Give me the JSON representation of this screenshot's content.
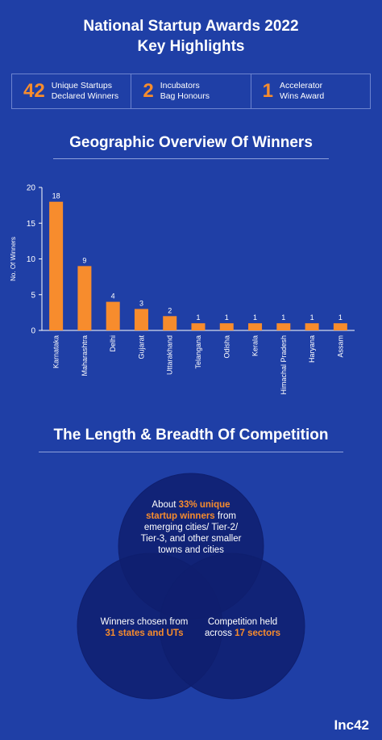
{
  "header": {
    "title_line1": "National Startup Awards 2022",
    "title_line2": "Key Highlights"
  },
  "stats": [
    {
      "number": "42",
      "line1": "Unique Startups",
      "line2": "Declared Winners"
    },
    {
      "number": "2",
      "line1": "Incubators",
      "line2": "Bag Honours"
    },
    {
      "number": "1",
      "line1": "Accelerator",
      "line2": "Wins Award"
    }
  ],
  "section1_title": "Geographic Overview Of Winners",
  "section2_title": "The Length & Breadth Of Competition",
  "colors": {
    "background": "#1f3fa6",
    "accent": "#f78c2d",
    "circle": "#0f1f6e"
  },
  "chart_data": {
    "type": "bar",
    "categories": [
      "Karnataka",
      "Maharashtra",
      "Delhi",
      "Gujarat",
      "Uttarakhand",
      "Telangana",
      "Odisha",
      "Kerala",
      "Himachal Pradesh",
      "Haryana",
      "Assam"
    ],
    "values": [
      18,
      9,
      4,
      3,
      2,
      1,
      1,
      1,
      1,
      1,
      1
    ],
    "ylabel": "No. Of Winners",
    "xlabel": "",
    "ylim": [
      0,
      20
    ],
    "yticks": [
      0,
      5,
      10,
      15,
      20
    ],
    "grid": false
  },
  "venn": {
    "top": {
      "pre": "About ",
      "highlight": "33% unique startup winners",
      "post": " from emerging cities/ Tier-2/ Tier-3, and other smaller towns and cities"
    },
    "left": {
      "pre": "Winners chosen from ",
      "highlight": "31 states and UTs",
      "post": ""
    },
    "right": {
      "pre": "Competition held across ",
      "highlight": "17 sectors",
      "post": ""
    }
  },
  "logo": "Inc42"
}
